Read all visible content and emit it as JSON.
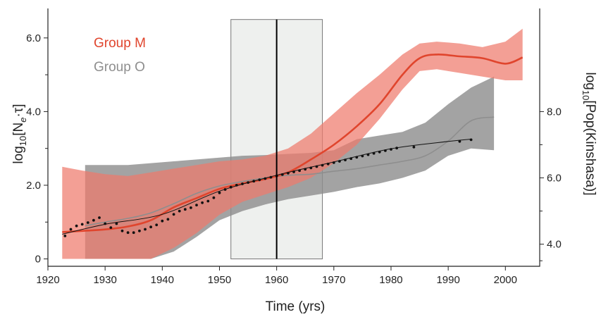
{
  "chart_data": {
    "type": "line",
    "xlabel": "Time (yrs)",
    "ylabel_left": {
      "base": "log",
      "sub": "10",
      "rest": "[N",
      "sub2": "e",
      "tail": "·τ]"
    },
    "ylabel_right": {
      "base": "log",
      "sub": "10",
      "tail": "[Pop(Kinshasa)]"
    },
    "xlim": [
      1920,
      2006
    ],
    "ylim": [
      -0.2,
      6.8
    ],
    "x_ticks": [
      1920,
      1930,
      1940,
      1950,
      1960,
      1970,
      1980,
      1990,
      2000
    ],
    "y_ticks": [
      {
        "value": 0,
        "label": "0"
      },
      {
        "value": 2,
        "label": "2.0"
      },
      {
        "value": 4,
        "label": "4.0"
      },
      {
        "value": 6,
        "label": "6.0"
      }
    ],
    "y_minor_ticks": [
      1,
      3,
      5
    ],
    "y2_ticks": [
      {
        "value": 4.0,
        "label": "4.0"
      },
      {
        "value": 6.0,
        "label": "6.0"
      },
      {
        "value": 8.0,
        "label": "8.0"
      }
    ],
    "y2_map": {
      "y2_at_4": 0.4,
      "y2_at_6": 2.2
    },
    "grid": false,
    "legend_position": "top-left",
    "highlight_band": {
      "x0": 1952,
      "x1": 1968,
      "color": "#eef0ee"
    },
    "vertical_line": {
      "x": 1960
    },
    "series": [
      {
        "name": "Group M",
        "color": "#e0452d",
        "band_color": "#ef7a6c",
        "x": [
          1922.5,
          1926,
          1930,
          1934,
          1938,
          1942,
          1946,
          1950,
          1954,
          1958,
          1962,
          1966,
          1970,
          1974,
          1978,
          1982,
          1985,
          1988,
          1992,
          1996,
          2000,
          2003
        ],
        "y": [
          0.73,
          0.76,
          0.8,
          0.88,
          1.05,
          1.4,
          1.65,
          1.9,
          2.05,
          2.17,
          2.35,
          2.7,
          3.1,
          3.6,
          4.2,
          5.0,
          5.45,
          5.55,
          5.5,
          5.45,
          5.3,
          5.47
        ],
        "lower": [
          0,
          0,
          0,
          0,
          0,
          0.3,
          0.7,
          1.2,
          1.55,
          1.75,
          1.95,
          2.2,
          2.6,
          3.1,
          3.8,
          4.6,
          5.1,
          5.15,
          5.05,
          4.95,
          4.85,
          4.85
        ],
        "upper": [
          2.5,
          2.4,
          2.3,
          2.25,
          2.35,
          2.45,
          2.55,
          2.65,
          2.7,
          2.8,
          3.0,
          3.4,
          3.95,
          4.5,
          5.0,
          5.55,
          5.85,
          5.9,
          5.85,
          5.75,
          5.9,
          6.25
        ]
      },
      {
        "name": "Group O",
        "color": "#8e8e8e",
        "band_color": "#8c8c8c",
        "x": [
          1926.5,
          1930,
          1934,
          1938,
          1942,
          1946,
          1950,
          1954,
          1958,
          1962,
          1966,
          1970,
          1974,
          1978,
          1982,
          1986,
          1990,
          1994,
          1998
        ],
        "y": [
          0.9,
          1.0,
          1.1,
          1.25,
          1.5,
          1.78,
          1.98,
          2.1,
          2.2,
          2.27,
          2.3,
          2.38,
          2.45,
          2.55,
          2.65,
          2.8,
          3.2,
          3.75,
          3.85
        ],
        "lower": [
          0,
          0,
          0,
          0,
          0.2,
          0.6,
          1.05,
          1.3,
          1.48,
          1.62,
          1.72,
          1.82,
          1.95,
          2.05,
          2.2,
          2.4,
          2.8,
          3.0,
          2.95
        ],
        "upper": [
          2.55,
          2.55,
          2.55,
          2.6,
          2.65,
          2.7,
          2.75,
          2.8,
          2.82,
          2.85,
          2.88,
          2.95,
          3.25,
          3.35,
          3.45,
          3.7,
          4.2,
          4.65,
          4.95
        ]
      }
    ],
    "population": {
      "color": "#111111",
      "points_x": [
        1923,
        1924,
        1925,
        1926,
        1927,
        1928,
        1929,
        1930,
        1931,
        1932,
        1933,
        1934,
        1935,
        1936,
        1937,
        1938,
        1939,
        1940,
        1941,
        1942,
        1943,
        1944,
        1945,
        1946,
        1947,
        1948,
        1949,
        1950,
        1951,
        1952,
        1953,
        1954,
        1955,
        1956,
        1957,
        1958,
        1959,
        1960,
        1961,
        1962,
        1963,
        1964,
        1965,
        1966,
        1967,
        1968,
        1969,
        1970,
        1971,
        1972,
        1973,
        1974,
        1975,
        1976,
        1977,
        1978,
        1979,
        1980,
        1981,
        1984,
        1992,
        1994
      ],
      "points_y": [
        4.25,
        4.45,
        4.55,
        4.6,
        4.65,
        4.72,
        4.8,
        4.62,
        4.5,
        4.62,
        4.4,
        4.35,
        4.35,
        4.4,
        4.45,
        4.52,
        4.58,
        4.7,
        4.75,
        4.9,
        5.0,
        5.05,
        5.1,
        5.18,
        5.25,
        5.3,
        5.4,
        5.55,
        5.65,
        5.72,
        5.78,
        5.82,
        5.86,
        5.9,
        5.94,
        5.98,
        6.02,
        6.06,
        6.1,
        6.14,
        6.18,
        6.22,
        6.26,
        6.3,
        6.34,
        6.38,
        6.42,
        6.46,
        6.5,
        6.54,
        6.58,
        6.62,
        6.66,
        6.7,
        6.74,
        6.78,
        6.82,
        6.86,
        6.9,
        6.93,
        7.1,
        7.15
      ],
      "fit_x": [
        1922.5,
        1930,
        1940,
        1950,
        1960,
        1970,
        1980,
        1990,
        1994
      ],
      "fit_y": [
        4.3,
        4.6,
        4.9,
        5.6,
        6.08,
        6.48,
        6.88,
        7.1,
        7.17
      ]
    }
  }
}
